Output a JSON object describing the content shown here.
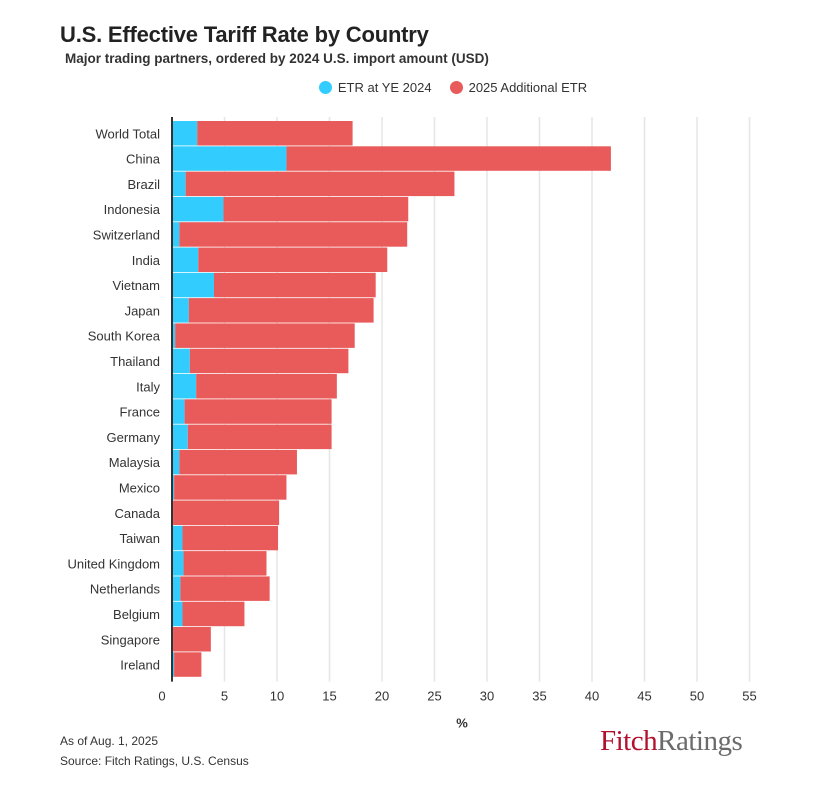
{
  "header": {
    "title": "U.S. Effective Tariff Rate by Country",
    "subtitle": "Major trading partners, ordered by 2024 U.S. import amount (USD)"
  },
  "footer": {
    "as_of": "As of Aug. 1, 2025",
    "source": "Source: Fitch Ratings, U.S. Census",
    "logo_part1": "Fitch",
    "logo_part2": "Ratings"
  },
  "colors": {
    "etr_2024": "#33ccff",
    "additional_2025": "#e95b5b",
    "grid": "#e6e6e6",
    "axis": "#333333"
  },
  "chart_data": {
    "type": "bar",
    "orientation": "horizontal",
    "stacked": true,
    "xlabel": "%",
    "ylabel": "",
    "xlim": [
      0,
      55
    ],
    "xticks": [
      0,
      5,
      10,
      15,
      20,
      25,
      30,
      35,
      40,
      45,
      50,
      55
    ],
    "grid": "vertical",
    "legend_position": "top-center",
    "categories": [
      "World Total",
      "China",
      "Brazil",
      "Indonesia",
      "Switzerland",
      "India",
      "Vietnam",
      "Japan",
      "South Korea",
      "Thailand",
      "Italy",
      "France",
      "Germany",
      "Malaysia",
      "Mexico",
      "Canada",
      "Taiwan",
      "United Kingdom",
      "Netherlands",
      "Belgium",
      "Singapore",
      "Ireland"
    ],
    "series": [
      {
        "name": "ETR at YE 2024",
        "color": "#33ccff",
        "values": [
          2.4,
          10.9,
          1.3,
          4.9,
          0.7,
          2.5,
          4.0,
          1.6,
          0.3,
          1.7,
          2.3,
          1.2,
          1.5,
          0.7,
          0.2,
          0.1,
          1.0,
          1.1,
          0.8,
          1.0,
          0.1,
          0.2
        ]
      },
      {
        "name": "2025 Additional ETR",
        "color": "#e95b5b",
        "values": [
          14.8,
          30.9,
          25.6,
          17.6,
          21.7,
          18.0,
          15.4,
          17.6,
          17.1,
          15.1,
          13.4,
          14.0,
          13.7,
          11.2,
          10.7,
          10.1,
          9.1,
          7.9,
          8.5,
          5.9,
          3.6,
          2.6
        ]
      }
    ]
  }
}
